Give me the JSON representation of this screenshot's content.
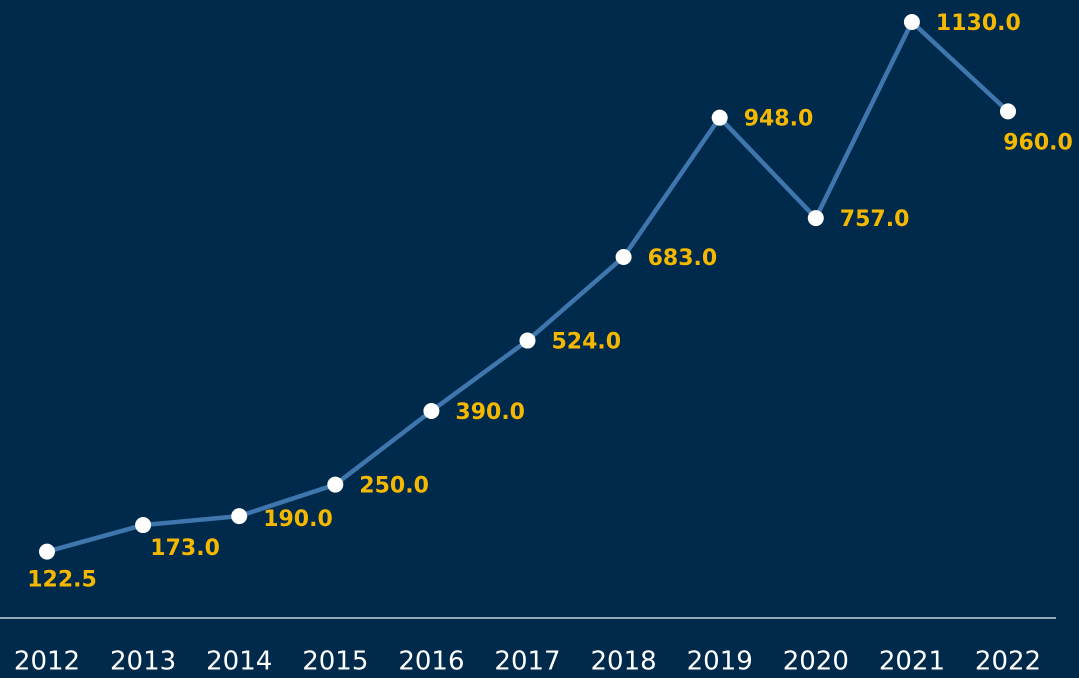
{
  "chart_data": {
    "type": "line",
    "categories": [
      "2012",
      "2013",
      "2014",
      "2015",
      "2016",
      "2017",
      "2018",
      "2019",
      "2020",
      "2021",
      "2022"
    ],
    "series": [
      {
        "color": "#3e76ad",
        "values": [
          122.5,
          173,
          190,
          250,
          390,
          524,
          683,
          948,
          757,
          1130,
          960
        ],
        "value_labels": [
          "122.5",
          "173.0",
          "190.0",
          "250.0",
          "390.0",
          "524.0",
          "683.0",
          "948.0",
          "757.0",
          "1130.0",
          "960.0"
        ]
      }
    ]
  }
}
